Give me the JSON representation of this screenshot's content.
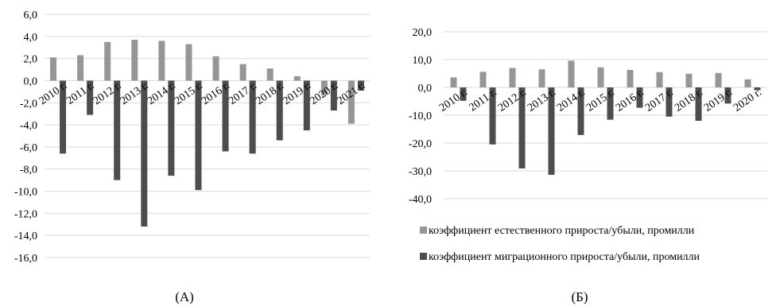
{
  "colors": {
    "natural": "#969696",
    "migration": "#4d4d4d",
    "grid": "#d9d9d9"
  },
  "chart_data": [
    {
      "type": "bar",
      "caption": "(А)",
      "categories": [
        "2010 г.",
        "2011 г.",
        "2012 г.",
        "2013 г.",
        "2014 г.",
        "2015 г.",
        "2016 г.",
        "2017 г.",
        "2018 г.",
        "2019 г.",
        "2020 г.",
        "2021 г."
      ],
      "series": [
        {
          "values": [
            2.1,
            2.3,
            3.5,
            3.7,
            3.6,
            3.3,
            2.2,
            1.5,
            1.1,
            0.4,
            -1.3,
            -3.9
          ]
        },
        {
          "values": [
            -6.6,
            -3.1,
            -9.0,
            -13.2,
            -8.6,
            -9.9,
            -6.4,
            -6.6,
            -5.4,
            -4.5,
            -2.7,
            -0.9
          ]
        }
      ],
      "yticks": [
        "6,0",
        "4,0",
        "2,0",
        "0,0",
        "-2,0",
        "-4,0",
        "-6,0",
        "-8,0",
        "-10,0",
        "-12,0",
        "-14,0",
        "-16,0"
      ],
      "ylim": [
        -16,
        6
      ],
      "grid": true
    },
    {
      "type": "bar",
      "caption": "(Б)",
      "categories": [
        "2010 г.",
        "2011 г.",
        "2012 г.",
        "2013 г.",
        "2014 г.",
        "2015 г.",
        "2016 г.",
        "2017 г.",
        "2018 г.",
        "2019 г.",
        "2020 г."
      ],
      "series": [
        {
          "name": "коэффициент естественного прироста/убыли, промилли",
          "values": [
            3.6,
            5.6,
            7.0,
            6.5,
            9.6,
            7.2,
            6.3,
            5.5,
            4.9,
            5.2,
            2.9
          ]
        },
        {
          "name": "коэффициент миграционного прироста/убыли, промилли",
          "values": [
            -4.8,
            -20.5,
            -29.1,
            -31.4,
            -17.1,
            -11.6,
            -7.3,
            -10.5,
            -12.0,
            -5.8,
            -1.0
          ]
        }
      ],
      "yticks": [
        "20,0",
        "10,0",
        "0,0",
        "-10,0",
        "-20,0",
        "-30,0",
        "-40,0"
      ],
      "ylim": [
        -40,
        20
      ],
      "grid": true,
      "legend": "bottom"
    }
  ]
}
